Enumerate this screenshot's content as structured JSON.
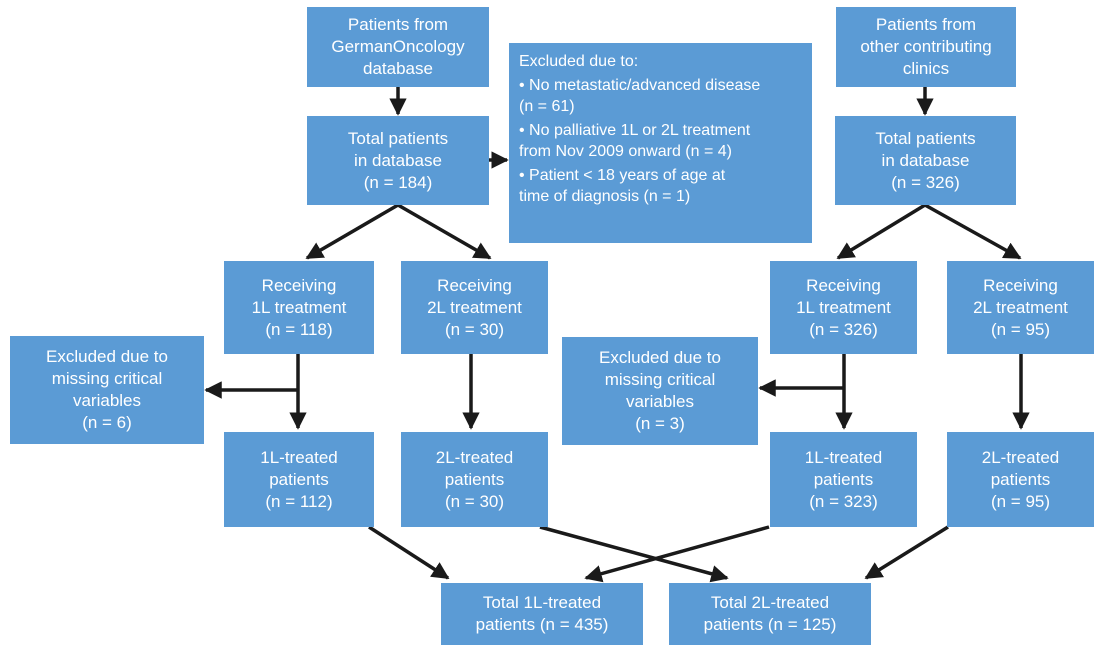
{
  "left": {
    "source": [
      "Patients from",
      "GermanOncology",
      "database"
    ],
    "total": [
      "Total patients",
      "in database",
      "(n = 184)"
    ],
    "recv1l": [
      "Receiving",
      "1L treatment",
      "(n = 118)"
    ],
    "recv2l": [
      "Receiving",
      "2L treatment",
      "(n = 30)"
    ],
    "excluded": [
      "Excluded due to",
      "missing critical",
      "variables",
      "(n = 6)"
    ],
    "treated1l": [
      "1L-treated",
      "patients",
      "(n = 112)"
    ],
    "treated2l": [
      "2L-treated",
      "patients",
      "(n = 30)"
    ]
  },
  "center_exclusion": {
    "header": "Excluded due to:",
    "items": [
      [
        "• No metastatic/advanced disease",
        "(n = 61)"
      ],
      [
        "• No palliative 1L or 2L treatment",
        "from Nov 2009 onward (n = 4)"
      ],
      [
        "• Patient < 18 years of age at",
        "time of diagnosis (n = 1)"
      ]
    ]
  },
  "right": {
    "source": [
      "Patients from",
      "other contributing",
      "clinics"
    ],
    "total": [
      "Total patients",
      "in database",
      "(n = 326)"
    ],
    "recv1l": [
      "Receiving",
      "1L treatment",
      "(n = 326)"
    ],
    "recv2l": [
      "Receiving",
      "2L treatment",
      "(n = 95)"
    ],
    "excluded": [
      "Excluded due to",
      "missing critical",
      "variables",
      "(n = 3)"
    ],
    "treated1l": [
      "1L-treated",
      "patients",
      "(n = 323)"
    ],
    "treated2l": [
      "2L-treated",
      "patients",
      "(n = 95)"
    ]
  },
  "totals": {
    "t1l": [
      "Total 1L-treated",
      "patients (n = 435)"
    ],
    "t2l": [
      "Total 2L-treated",
      "patients (n = 125)"
    ]
  },
  "colors": {
    "box": "#5b9bd5",
    "text": "#ffffff",
    "arrow": "#1a1a1a"
  }
}
